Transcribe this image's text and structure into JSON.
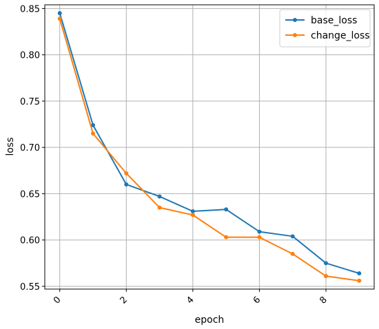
{
  "chart_data": {
    "type": "line",
    "title": "",
    "xlabel": "epoch",
    "ylabel": "loss",
    "x": [
      0,
      1,
      2,
      3,
      4,
      5,
      6,
      7,
      8,
      9
    ],
    "xlim": [
      -0.45,
      9.45
    ],
    "ylim": [
      0.547,
      0.854
    ],
    "xticks": [
      0,
      2,
      4,
      6,
      8
    ],
    "yticks": [
      0.55,
      0.6,
      0.65,
      0.7,
      0.75,
      0.8,
      0.85
    ],
    "ytick_labels": [
      "0.55",
      "0.60",
      "0.65",
      "0.70",
      "0.75",
      "0.80",
      "0.85"
    ],
    "grid": true,
    "legend_position": "top-right",
    "series": [
      {
        "name": "base_loss",
        "color": "#1f77b4",
        "marker": "circle",
        "values": [
          0.845,
          0.724,
          0.66,
          0.647,
          0.631,
          0.633,
          0.609,
          0.604,
          0.575,
          0.564
        ]
      },
      {
        "name": "change_loss",
        "color": "#ff7f0e",
        "marker": "circle",
        "values": [
          0.839,
          0.715,
          0.672,
          0.635,
          0.627,
          0.603,
          0.603,
          0.585,
          0.561,
          0.556
        ]
      }
    ]
  }
}
